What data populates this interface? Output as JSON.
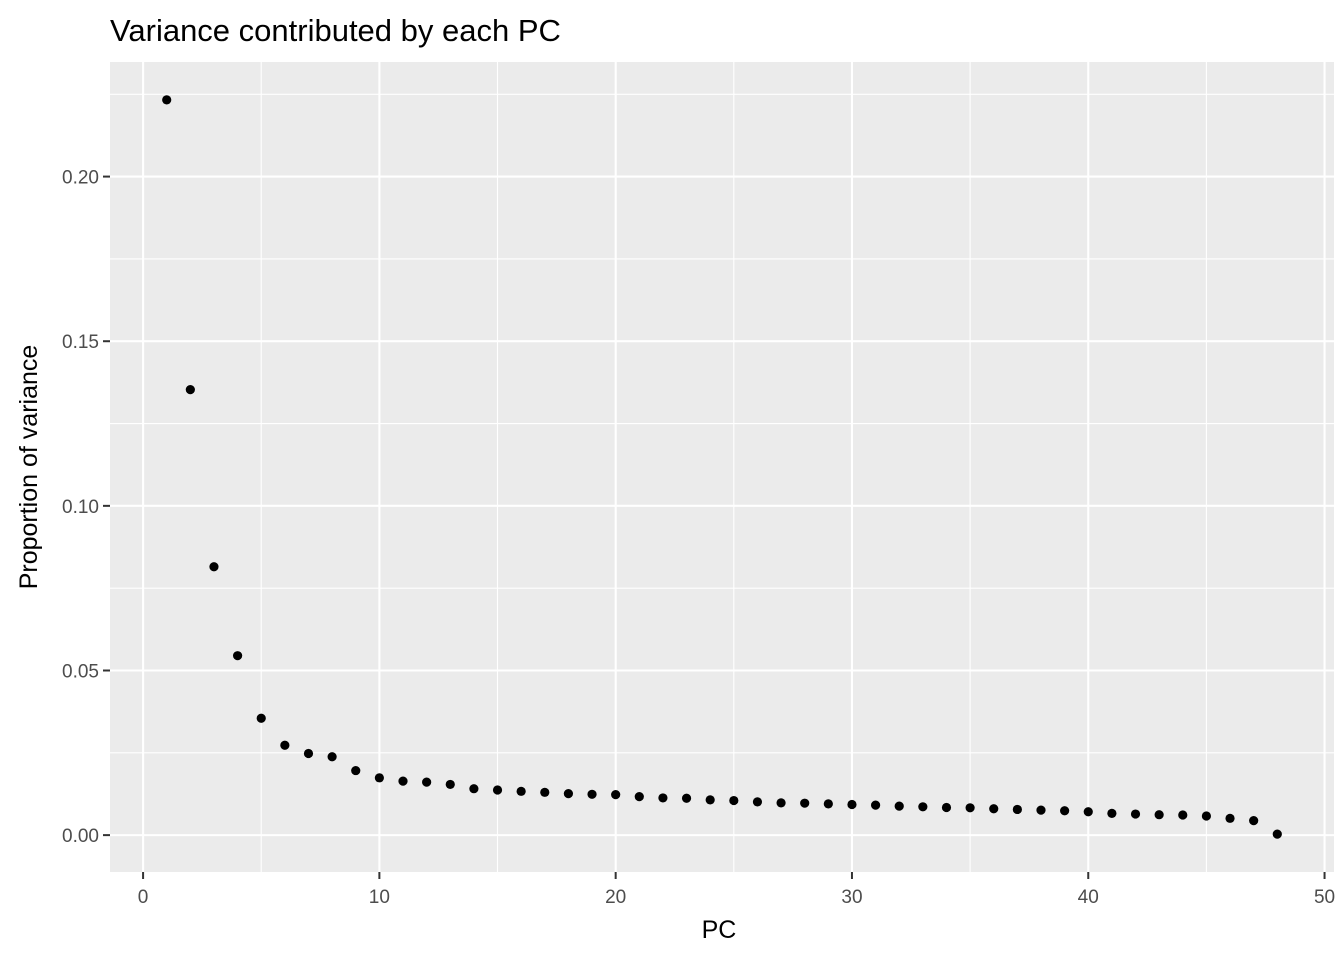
{
  "chart_data": {
    "type": "scatter",
    "title": "Variance contributed by each PC",
    "xlabel": "PC",
    "ylabel": "Proportion of variance",
    "xlim": [
      -1.4,
      50.4
    ],
    "ylim": [
      -0.0112,
      0.2348
    ],
    "x_ticks": [
      0,
      10,
      20,
      30,
      40,
      50
    ],
    "x_tick_labels": [
      "0",
      "10",
      "20",
      "30",
      "40",
      "50"
    ],
    "y_ticks": [
      0.0,
      0.05,
      0.1,
      0.15,
      0.2
    ],
    "y_tick_labels": [
      "0.00",
      "0.05",
      "0.10",
      "0.15",
      "0.20"
    ],
    "x_minor_ticks": [
      5,
      15,
      25,
      35,
      45
    ],
    "y_minor_ticks": [
      0.025,
      0.075,
      0.125,
      0.175,
      0.225
    ],
    "grid": true,
    "legend": "none",
    "panel_background": "#ebebeb",
    "grid_color": "#ffffff",
    "point_color": "#000000",
    "x": [
      1,
      2,
      3,
      4,
      5,
      6,
      7,
      8,
      9,
      10,
      11,
      12,
      13,
      14,
      15,
      16,
      17,
      18,
      19,
      20,
      21,
      22,
      23,
      24,
      25,
      26,
      27,
      28,
      29,
      30,
      31,
      32,
      33,
      34,
      35,
      36,
      37,
      38,
      39,
      40,
      41,
      42,
      43,
      44,
      45,
      46,
      47,
      48
    ],
    "y": [
      0.2233,
      0.1353,
      0.0815,
      0.0545,
      0.0355,
      0.0273,
      0.0248,
      0.0238,
      0.0196,
      0.0174,
      0.0164,
      0.0161,
      0.0154,
      0.0141,
      0.0137,
      0.0133,
      0.013,
      0.0126,
      0.0124,
      0.0123,
      0.0117,
      0.0113,
      0.0112,
      0.0107,
      0.0105,
      0.0101,
      0.0098,
      0.0097,
      0.0095,
      0.0093,
      0.0091,
      0.0088,
      0.0086,
      0.0084,
      0.0083,
      0.008,
      0.0078,
      0.0076,
      0.0074,
      0.0071,
      0.0066,
      0.0064,
      0.0062,
      0.0061,
      0.0058,
      0.0051,
      0.0044,
      0.0003
    ]
  }
}
